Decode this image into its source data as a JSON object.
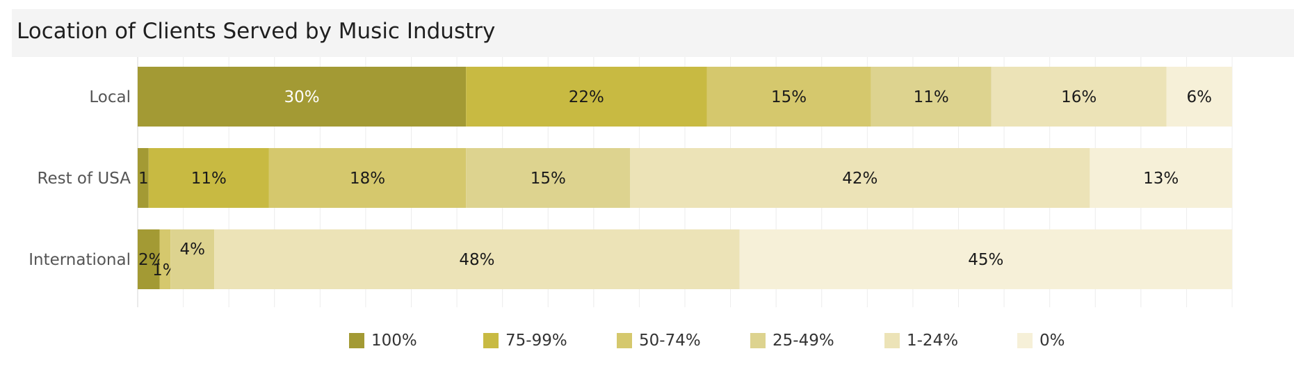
{
  "title": "Location of Clients Served by Music Industry",
  "chart_data": {
    "type": "bar",
    "orientation": "horizontal",
    "stacked": true,
    "title": "Location of Clients Served by Music Industry",
    "categories": [
      "Local",
      "Rest of USA",
      "International"
    ],
    "series": [
      {
        "name": "100%",
        "color": "#a39a34",
        "values": [
          30,
          1,
          2
        ],
        "labels": [
          "30%",
          "1%",
          "2%"
        ]
      },
      {
        "name": "75-99%",
        "color": "#c8ba42",
        "values": [
          22,
          11,
          0
        ],
        "labels": [
          "22%",
          "11%",
          ""
        ]
      },
      {
        "name": "50-74%",
        "color": "#d5c86d",
        "values": [
          15,
          18,
          1
        ],
        "labels": [
          "15%",
          "18%",
          "1%"
        ]
      },
      {
        "name": "25-49%",
        "color": "#ddd38f",
        "values": [
          11,
          15,
          4
        ],
        "labels": [
          "11%",
          "15%",
          "4%"
        ]
      },
      {
        "name": "1-24%",
        "color": "#ece3b7",
        "values": [
          16,
          42,
          48
        ],
        "labels": [
          "16%",
          "42%",
          "48%"
        ]
      },
      {
        "name": "0%",
        "color": "#f6f0d8",
        "values": [
          6,
          13,
          45
        ],
        "labels": [
          "6%",
          "13%",
          "45%"
        ]
      }
    ],
    "xlim": [
      0,
      100
    ],
    "grid": true,
    "legend_position": "bottom"
  }
}
